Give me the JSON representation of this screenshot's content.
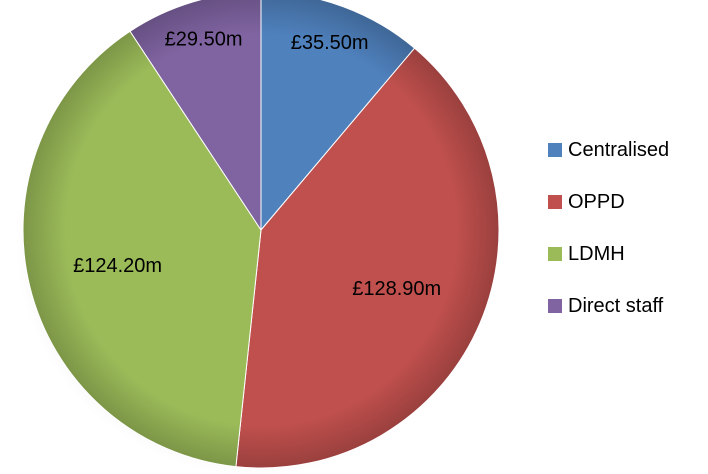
{
  "chart_data": {
    "type": "pie",
    "title": "",
    "unit": "£m",
    "legend_position": "right",
    "start_angle": "top, clockwise",
    "slices": [
      {
        "name": "Centralised",
        "value": 35.5,
        "label": "£35.50m",
        "color": "#4f81bd"
      },
      {
        "name": "OPPD",
        "value": 128.9,
        "label": "£128.90m",
        "color": "#c0504d"
      },
      {
        "name": "LDMH",
        "value": 124.2,
        "label": "£124.20m",
        "color": "#9bbb59"
      },
      {
        "name": "Direct staff",
        "value": 29.5,
        "label": "£29.50m",
        "color": "#8064a2"
      }
    ]
  },
  "legend": {
    "items": [
      {
        "label": "Centralised",
        "color": "#4f81bd"
      },
      {
        "label": "OPPD",
        "color": "#c0504d"
      },
      {
        "label": "LDMH",
        "color": "#9bbb59"
      },
      {
        "label": "Direct staff",
        "color": "#8064a2"
      }
    ]
  }
}
